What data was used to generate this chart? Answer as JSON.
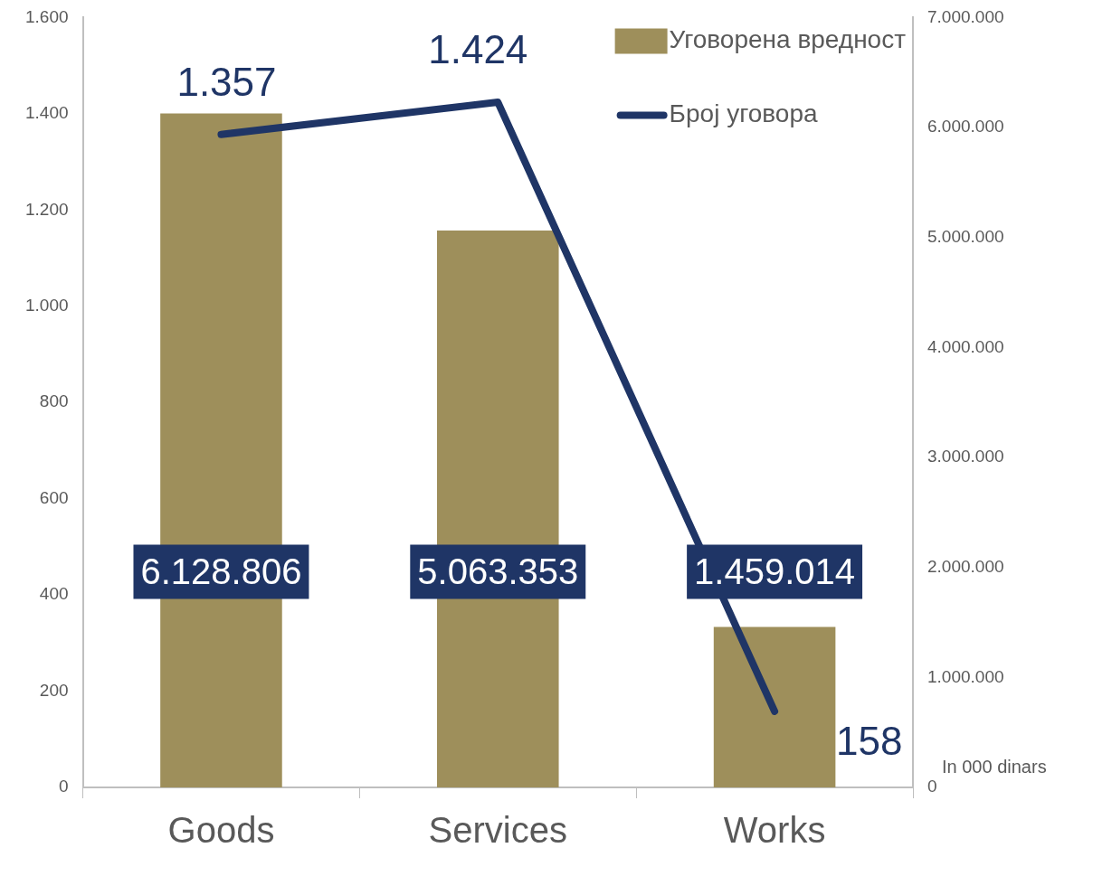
{
  "chart_data": {
    "type": "bar",
    "categories": [
      "Goods",
      "Services",
      "Works"
    ],
    "series": [
      {
        "name": "Уговорена вредност",
        "axis": "y2",
        "color": "#9e8f5b",
        "values": [
          6128806,
          5063353,
          1459014
        ],
        "value_labels": [
          "6.128.806",
          "5.063.353",
          "1.459.014"
        ]
      },
      {
        "name": "Број уговора",
        "type": "line",
        "color": "#1f3566",
        "values": [
          1357,
          1424,
          158
        ],
        "value_labels": [
          "1.357",
          "1.424",
          "158"
        ]
      }
    ],
    "ylim": [
      0,
      1600
    ],
    "yticks": [
      0,
      {
        "value": 200,
        "label": "200"
      },
      {
        "value": 400,
        "label": "400"
      },
      {
        "value": 600,
        "label": "600"
      },
      {
        "value": 800,
        "label": "800"
      },
      {
        "value": 1000,
        "label": "1.000"
      },
      {
        "value": 1200,
        "label": "1.200"
      },
      {
        "value": 1400,
        "label": "1.400"
      },
      {
        "value": 1600,
        "label": "1.600"
      }
    ],
    "y2lim": [
      0,
      7000000
    ],
    "y2ticks": [
      0,
      {
        "value": 1000000,
        "label": "1.000.000"
      },
      {
        "value": 2000000,
        "label": "2.000.000"
      },
      {
        "value": 3000000,
        "label": "3.000.000"
      },
      {
        "value": 4000000,
        "label": "4.000.000"
      },
      {
        "value": 5000000,
        "label": "5.000.000"
      },
      {
        "value": 6000000,
        "label": "6.000.000"
      },
      {
        "value": 7000000,
        "label": "7.000.000"
      }
    ],
    "legend": "top right",
    "grid": false,
    "annotations": [
      "In 000 dinars"
    ]
  }
}
